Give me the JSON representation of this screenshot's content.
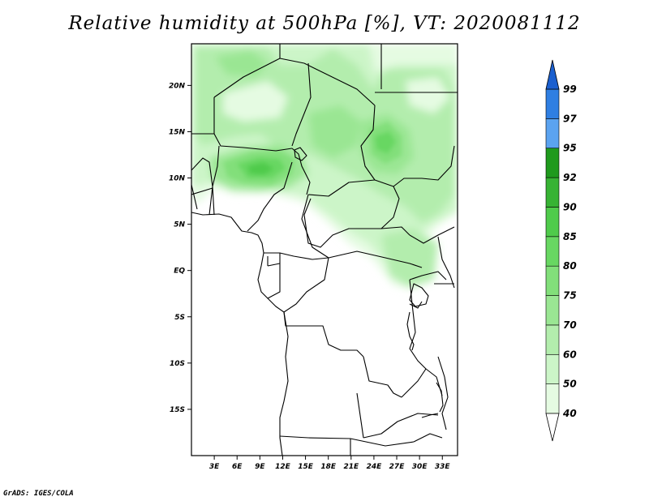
{
  "title": "Relative humidity at 500hPa [%], VT: 2020081112",
  "credit": "GrADS: IGES/COLA",
  "map": {
    "lon_range": [
      0,
      35
    ],
    "lat_range": [
      -20,
      24.5
    ],
    "lon_ticks": [
      "3E",
      "6E",
      "9E",
      "12E",
      "15E",
      "18E",
      "21E",
      "24E",
      "27E",
      "30E",
      "33E"
    ],
    "lat_ticks": [
      "20N",
      "15N",
      "10N",
      "5N",
      "EQ",
      "5S",
      "10S",
      "15S"
    ]
  },
  "colorbar": {
    "levels": [
      "40",
      "50",
      "60",
      "70",
      "75",
      "80",
      "85",
      "90",
      "92",
      "95",
      "97",
      "99"
    ],
    "colors": [
      "#e5fbe2",
      "#ccf5c8",
      "#b3edad",
      "#9ae693",
      "#82df7a",
      "#68d762",
      "#4fcb4b",
      "#37b334",
      "#1f9a1d",
      "#5ba3f0",
      "#2f7fe2",
      "#1a5fcf"
    ]
  }
}
